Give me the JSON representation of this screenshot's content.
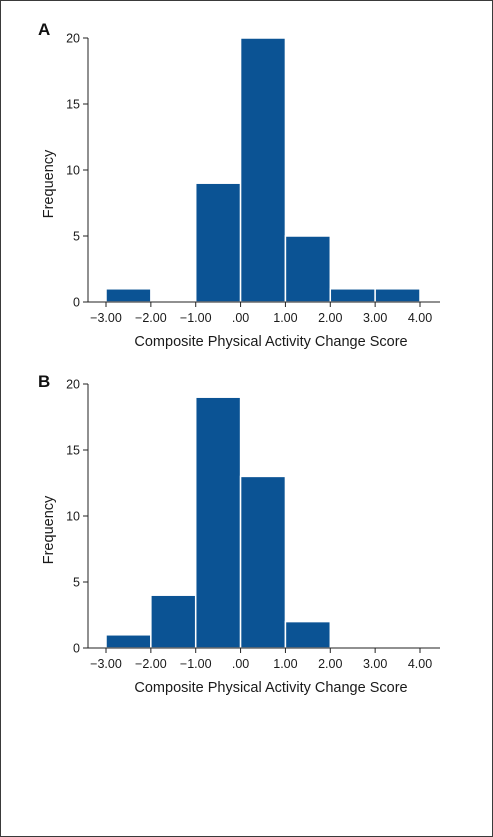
{
  "chart_data": [
    {
      "type": "bar",
      "panel": "A",
      "xlabel": "Composite Physical Activity Change Score",
      "ylabel": "Frequency",
      "x_ticks": [
        "−3.00",
        "−2.00",
        "−1.00",
        ".00",
        "1.00",
        "2.00",
        "3.00",
        "4.00"
      ],
      "y_ticks": [
        "0",
        "5",
        "10",
        "15",
        "20"
      ],
      "xlim": [
        -3,
        4
      ],
      "ylim": [
        0,
        20
      ],
      "bins": [
        [
          -3,
          -2
        ],
        [
          -2,
          -1
        ],
        [
          -1,
          0
        ],
        [
          0,
          1
        ],
        [
          1,
          2
        ],
        [
          2,
          3
        ],
        [
          3,
          4
        ]
      ],
      "values": [
        1,
        0,
        9,
        20,
        5,
        1,
        1
      ],
      "color": "#0b5394"
    },
    {
      "type": "bar",
      "panel": "B",
      "xlabel": "Composite Physical Activity Change Score",
      "ylabel": "Frequency",
      "x_ticks": [
        "−3.00",
        "−2.00",
        "−1.00",
        ".00",
        "1.00",
        "2.00",
        "3.00",
        "4.00"
      ],
      "y_ticks": [
        "0",
        "5",
        "10",
        "15",
        "20"
      ],
      "xlim": [
        -3,
        4
      ],
      "ylim": [
        0,
        20
      ],
      "bins": [
        [
          -3,
          -2
        ],
        [
          -2,
          -1
        ],
        [
          -1,
          0
        ],
        [
          0,
          1
        ],
        [
          1,
          2
        ],
        [
          2,
          3
        ],
        [
          3,
          4
        ]
      ],
      "values": [
        1,
        4,
        19,
        13,
        2,
        0,
        0
      ],
      "color": "#0b5394"
    }
  ]
}
